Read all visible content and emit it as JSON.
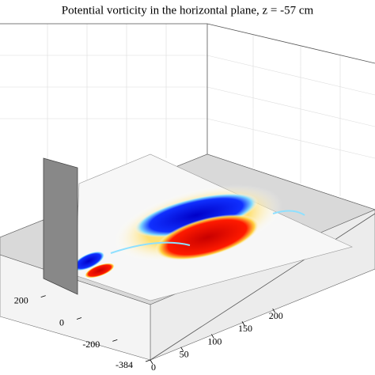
{
  "chart_data": {
    "type": "field3d",
    "title": "Potential vorticity in the horizontal plane, z = -57 cm",
    "xlim": [
      0,
      256
    ],
    "xticks": [
      0,
      50,
      100,
      150,
      200
    ],
    "ylim": [
      -384,
      384
    ],
    "yticks": [
      -384,
      -200,
      0,
      200
    ]
  }
}
